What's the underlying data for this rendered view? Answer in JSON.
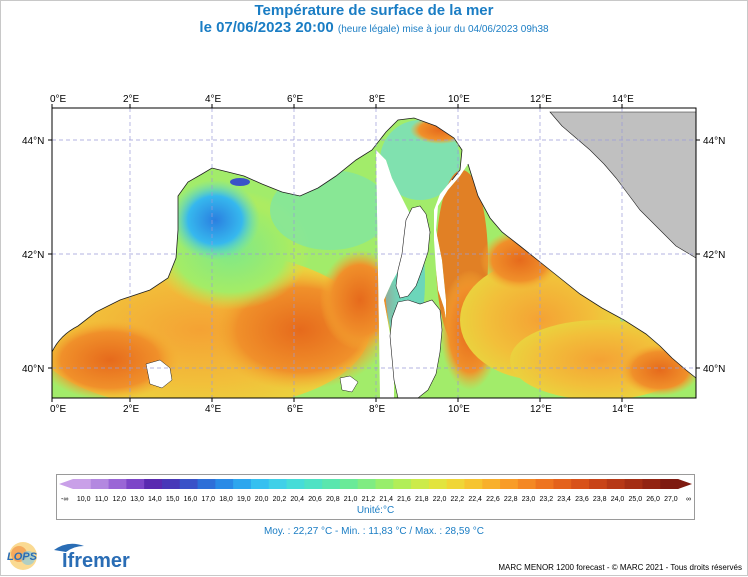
{
  "header": {
    "title": "Température de surface de la mer",
    "date_main": "le 07/06/2023 20:00",
    "date_note": "(heure légale) mise à jour du 04/06/2023 09h38"
  },
  "map": {
    "lon_labels": [
      "0°E",
      "2°E",
      "4°E",
      "6°E",
      "8°E",
      "10°E",
      "12°E",
      "14°E"
    ],
    "lat_labels": [
      "44°N",
      "42°N",
      "40°N"
    ],
    "land_color": "#c0c0c0",
    "grid": "dashed"
  },
  "legend": {
    "low_arrow": "-∞",
    "high_arrow": "∞",
    "values": [
      "10,0",
      "11,0",
      "12,0",
      "13,0",
      "14,0",
      "15,0",
      "16,0",
      "17,0",
      "18,0",
      "19,0",
      "20,0",
      "20,2",
      "20,4",
      "20,6",
      "20,8",
      "21,0",
      "21,2",
      "21,4",
      "21,6",
      "21,8",
      "22,0",
      "22,2",
      "22,4",
      "22,6",
      "22,8",
      "23,0",
      "23,2",
      "23,4",
      "23,6",
      "23,8",
      "24,0",
      "25,0",
      "26,0",
      "27,0"
    ],
    "colors": [
      "#c9a0e8",
      "#b388e0",
      "#9a66d6",
      "#7d46c8",
      "#5a2ab0",
      "#4838b8",
      "#3a52c8",
      "#2e6fd8",
      "#2a8ae6",
      "#2ea6ee",
      "#36c0f0",
      "#40d0e8",
      "#46dcd8",
      "#4ee2c4",
      "#5ae6ae",
      "#6aea98",
      "#80ec82",
      "#98ee6c",
      "#b2ee58",
      "#cceb4a",
      "#e2e43e",
      "#f0d636",
      "#f6c430",
      "#f8b02c",
      "#f89c28",
      "#f48824",
      "#ee7420",
      "#e4621c",
      "#d8521a",
      "#c84418",
      "#b63816",
      "#a42e14",
      "#922412",
      "#7e1a10"
    ],
    "unit": "Unité:°C"
  },
  "stats": {
    "text": "Moy. : 22,27 °C    -    Min. : 11,83 °C / Max. : 28,59 °C"
  },
  "footer": {
    "logo_lops": "LOPS",
    "logo_ifremer": "Ifremer",
    "copyright": "MARC MENOR 1200 forecast - © MARC 2021 - Tous droits réservés"
  }
}
